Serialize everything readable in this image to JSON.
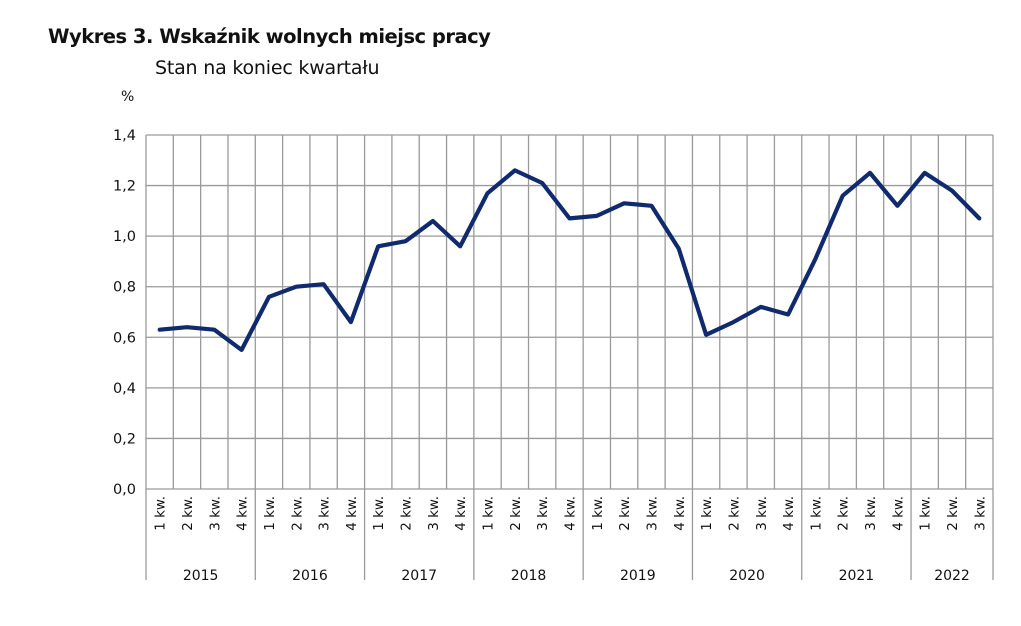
{
  "header": {
    "title": "Wykres 3. Wskaźnik wolnych miejsc pracy",
    "subtitle": "Stan na koniec kwartału",
    "unit": "%"
  },
  "colors": {
    "line": "#0f2a6e",
    "grid": "#9a9a9a",
    "background": "#ffffff"
  },
  "chart_data": {
    "type": "line",
    "title": "Wykres 3. Wskaźnik wolnych miejsc pracy",
    "subtitle": "Stan na koniec kwartału",
    "xlabel": "",
    "ylabel": "%",
    "ylim": [
      0.0,
      1.4
    ],
    "yticks": [
      "0,0",
      "0,2",
      "0,4",
      "0,6",
      "0,8",
      "1,0",
      "1,2",
      "1,4"
    ],
    "grid": true,
    "legend": "none",
    "years": [
      {
        "label": "2015",
        "quarters": [
          "1 kw.",
          "2 kw.",
          "3 kw.",
          "4 kw."
        ]
      },
      {
        "label": "2016",
        "quarters": [
          "1 kw.",
          "2 kw.",
          "3 kw.",
          "4 kw."
        ]
      },
      {
        "label": "2017",
        "quarters": [
          "1 kw.",
          "2 kw.",
          "3 kw.",
          "4 kw."
        ]
      },
      {
        "label": "2018",
        "quarters": [
          "1 kw.",
          "2 kw.",
          "3 kw.",
          "4 kw."
        ]
      },
      {
        "label": "2019",
        "quarters": [
          "1 kw.",
          "2 kw.",
          "3 kw.",
          "4 kw."
        ]
      },
      {
        "label": "2020",
        "quarters": [
          "1 kw.",
          "2 kw.",
          "3 kw.",
          "4 kw."
        ]
      },
      {
        "label": "2021",
        "quarters": [
          "1 kw.",
          "2 kw.",
          "3 kw.",
          "4 kw."
        ]
      },
      {
        "label": "2022",
        "quarters": [
          "1 kw.",
          "2 kw.",
          "3 kw."
        ]
      }
    ],
    "categories": [
      "2015 1 kw.",
      "2015 2 kw.",
      "2015 3 kw.",
      "2015 4 kw.",
      "2016 1 kw.",
      "2016 2 kw.",
      "2016 3 kw.",
      "2016 4 kw.",
      "2017 1 kw.",
      "2017 2 kw.",
      "2017 3 kw.",
      "2017 4 kw.",
      "2018 1 kw.",
      "2018 2 kw.",
      "2018 3 kw.",
      "2018 4 kw.",
      "2019 1 kw.",
      "2019 2 kw.",
      "2019 3 kw.",
      "2019 4 kw.",
      "2020 1 kw.",
      "2020 2 kw.",
      "2020 3 kw.",
      "2020 4 kw.",
      "2021 1 kw.",
      "2021 2 kw.",
      "2021 3 kw.",
      "2021 4 kw.",
      "2022 1 kw.",
      "2022 2 kw.",
      "2022 3 kw."
    ],
    "series": [
      {
        "name": "Wskaźnik wolnych miejsc pracy",
        "values": [
          0.63,
          0.64,
          0.63,
          0.55,
          0.76,
          0.8,
          0.81,
          0.66,
          0.96,
          0.98,
          1.06,
          0.96,
          1.17,
          1.26,
          1.21,
          1.07,
          1.08,
          1.13,
          1.12,
          0.95,
          0.61,
          0.66,
          0.72,
          0.69,
          0.91,
          1.16,
          1.25,
          1.12,
          1.25,
          1.18,
          1.07
        ]
      }
    ]
  }
}
